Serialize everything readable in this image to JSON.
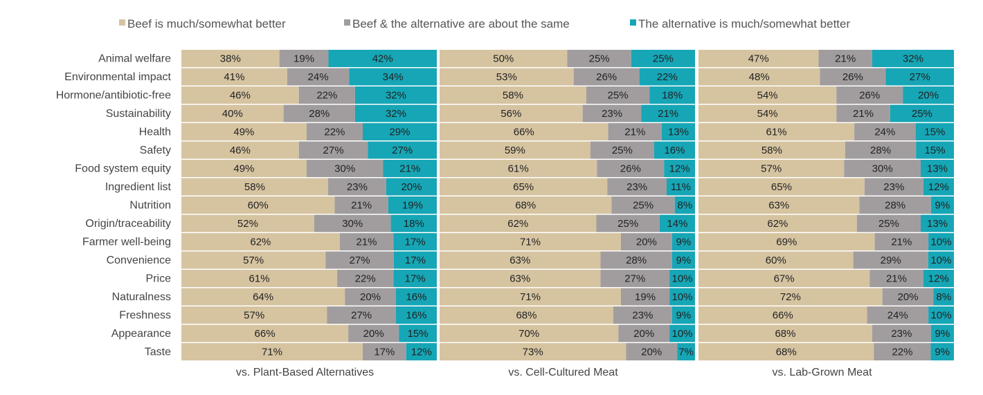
{
  "chart_data": {
    "type": "bar",
    "stacked": true,
    "orientation": "horizontal",
    "legend": [
      {
        "label": "Beef is much/somewhat better",
        "color": "#d6c4a1"
      },
      {
        "label": "Beef & the alternative are about the same",
        "color": "#a19d9f"
      },
      {
        "label": "The alternative is much/somewhat better",
        "color": "#16a6b6"
      }
    ],
    "legend_position": "top",
    "categories": [
      "Animal welfare",
      "Environmental impact",
      "Hormone/antibiotic-free",
      "Sustainability",
      "Health",
      "Safety",
      "Food system equity",
      "Ingredient list",
      "Nutrition",
      "Origin/traceability",
      "Farmer well-being",
      "Convenience",
      "Price",
      "Naturalness",
      "Freshness",
      "Appearance",
      "Taste"
    ],
    "panels": [
      {
        "title": "vs. Plant-Based Alternatives",
        "series": [
          {
            "name": "Beef is much/somewhat better",
            "values": [
              38,
              41,
              46,
              40,
              49,
              46,
              49,
              58,
              60,
              52,
              62,
              57,
              61,
              64,
              57,
              66,
              71
            ]
          },
          {
            "name": "Beef & the alternative are about the same",
            "values": [
              19,
              24,
              22,
              28,
              22,
              27,
              30,
              23,
              21,
              30,
              21,
              27,
              22,
              20,
              27,
              20,
              17
            ]
          },
          {
            "name": "The alternative is much/somewhat better",
            "values": [
              42,
              34,
              32,
              32,
              29,
              27,
              21,
              20,
              19,
              18,
              17,
              17,
              17,
              16,
              16,
              15,
              12
            ]
          }
        ]
      },
      {
        "title": "vs. Cell-Cultured Meat",
        "series": [
          {
            "name": "Beef is much/somewhat better",
            "values": [
              50,
              53,
              58,
              56,
              66,
              59,
              61,
              65,
              68,
              62,
              71,
              63,
              63,
              71,
              68,
              70,
              73
            ]
          },
          {
            "name": "Beef & the alternative are about the same",
            "values": [
              25,
              26,
              25,
              23,
              21,
              25,
              26,
              23,
              25,
              25,
              20,
              28,
              27,
              19,
              23,
              20,
              20
            ]
          },
          {
            "name": "The alternative is much/somewhat better",
            "values": [
              25,
              22,
              18,
              21,
              13,
              16,
              12,
              11,
              8,
              14,
              9,
              9,
              10,
              10,
              9,
              10,
              7
            ]
          }
        ]
      },
      {
        "title": "vs. Lab-Grown Meat",
        "series": [
          {
            "name": "Beef is much/somewhat better",
            "values": [
              47,
              48,
              54,
              54,
              61,
              58,
              57,
              65,
              63,
              62,
              69,
              60,
              67,
              72,
              66,
              68,
              68
            ]
          },
          {
            "name": "Beef & the alternative are about the same",
            "values": [
              21,
              26,
              26,
              21,
              24,
              28,
              30,
              23,
              28,
              25,
              21,
              29,
              21,
              20,
              24,
              23,
              22
            ]
          },
          {
            "name": "The alternative is much/somewhat better",
            "values": [
              32,
              27,
              20,
              25,
              15,
              15,
              13,
              12,
              9,
              13,
              10,
              10,
              12,
              8,
              10,
              9,
              9
            ]
          }
        ]
      }
    ],
    "value_suffix": "%",
    "grid": false
  }
}
